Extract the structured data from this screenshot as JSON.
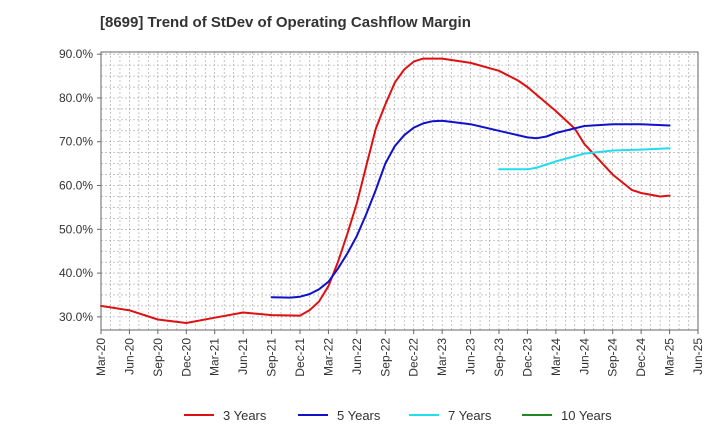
{
  "chart_data": {
    "type": "line",
    "title": "[8699]  Trend of StDev of Operating Cashflow Margin",
    "xlabel": "",
    "ylabel": "",
    "x_ticks": [
      "Mar-20",
      "Jun-20",
      "Sep-20",
      "Dec-20",
      "Mar-21",
      "Jun-21",
      "Sep-21",
      "Dec-21",
      "Mar-22",
      "Jun-22",
      "Sep-22",
      "Dec-22",
      "Mar-23",
      "Jun-23",
      "Sep-23",
      "Dec-23",
      "Mar-24",
      "Jun-24",
      "Sep-24",
      "Dec-24",
      "Mar-25",
      "Jun-25"
    ],
    "y_ticks": [
      "30.0%",
      "40.0%",
      "50.0%",
      "60.0%",
      "70.0%",
      "80.0%",
      "90.0%"
    ],
    "ylim": [
      27,
      90.5
    ],
    "grid": true,
    "legend_position": "bottom",
    "series": [
      {
        "name": "3 Years",
        "color": "#dd1111",
        "points": [
          [
            "Mar-20",
            32.5
          ],
          [
            "Jun-20",
            31.5
          ],
          [
            "Sep-20",
            29.4
          ],
          [
            "Dec-20",
            28.6
          ],
          [
            "Mar-21",
            29.8
          ],
          [
            "Jun-21",
            31.0
          ],
          [
            "Sep-21",
            30.4
          ],
          [
            "Dec-21",
            30.3
          ],
          [
            "Jan-22",
            31.5
          ],
          [
            "Feb-22",
            33.5
          ],
          [
            "Mar-22",
            37.0
          ],
          [
            "Apr-22",
            42.5
          ],
          [
            "May-22",
            49.0
          ],
          [
            "Jun-22",
            56.0
          ],
          [
            "Jul-22",
            64.5
          ],
          [
            "Aug-22",
            73.0
          ],
          [
            "Sep-22",
            78.5
          ],
          [
            "Oct-22",
            83.5
          ],
          [
            "Nov-22",
            86.5
          ],
          [
            "Dec-22",
            88.3
          ],
          [
            "Jan-23",
            89.0
          ],
          [
            "Mar-23",
            89.0
          ],
          [
            "Jun-23",
            88.0
          ],
          [
            "Sep-23",
            86.2
          ],
          [
            "Nov-23",
            84.0
          ],
          [
            "Dec-23",
            82.5
          ],
          [
            "Mar-24",
            77.0
          ],
          [
            "May-24",
            73.0
          ],
          [
            "Jun-24",
            69.5
          ],
          [
            "Sep-24",
            62.5
          ],
          [
            "Nov-24",
            59.0
          ],
          [
            "Dec-24",
            58.3
          ],
          [
            "Feb-25",
            57.5
          ],
          [
            "Mar-25",
            57.7
          ]
        ]
      },
      {
        "name": "5 Years",
        "color": "#1111cc",
        "points": [
          [
            "Sep-21",
            34.5
          ],
          [
            "Nov-21",
            34.4
          ],
          [
            "Dec-21",
            34.6
          ],
          [
            "Jan-22",
            35.2
          ],
          [
            "Feb-22",
            36.3
          ],
          [
            "Mar-22",
            38.0
          ],
          [
            "Apr-22",
            41.0
          ],
          [
            "May-22",
            44.5
          ],
          [
            "Jun-22",
            48.5
          ],
          [
            "Jul-22",
            53.5
          ],
          [
            "Aug-22",
            59.0
          ],
          [
            "Sep-22",
            65.0
          ],
          [
            "Oct-22",
            69.0
          ],
          [
            "Nov-22",
            71.5
          ],
          [
            "Dec-22",
            73.2
          ],
          [
            "Jan-23",
            74.2
          ],
          [
            "Feb-23",
            74.7
          ],
          [
            "Mar-23",
            74.8
          ],
          [
            "Jun-23",
            74.0
          ],
          [
            "Sep-23",
            72.5
          ],
          [
            "Dec-23",
            71.0
          ],
          [
            "Jan-24",
            70.8
          ],
          [
            "Feb-24",
            71.2
          ],
          [
            "Mar-24",
            72.0
          ],
          [
            "Jun-24",
            73.6
          ],
          [
            "Sep-24",
            74.0
          ],
          [
            "Dec-24",
            74.0
          ],
          [
            "Mar-25",
            73.7
          ]
        ]
      },
      {
        "name": "7 Years",
        "color": "#22ddee",
        "points": [
          [
            "Sep-23",
            63.7
          ],
          [
            "Dec-23",
            63.7
          ],
          [
            "Jan-24",
            64.1
          ],
          [
            "Feb-24",
            64.8
          ],
          [
            "Mar-24",
            65.5
          ],
          [
            "Jun-24",
            67.3
          ],
          [
            "Sep-24",
            68.0
          ],
          [
            "Dec-24",
            68.2
          ],
          [
            "Mar-25",
            68.5
          ]
        ]
      },
      {
        "name": "10 Years",
        "color": "#228822",
        "points": []
      }
    ]
  }
}
